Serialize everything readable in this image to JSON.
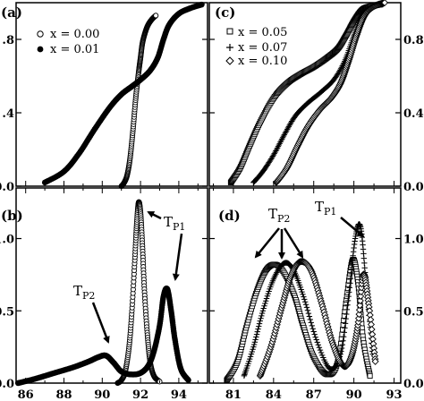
{
  "chart_data": [
    {
      "panel": "(a)",
      "type": "scatter",
      "xlim": [
        85.5,
        95.5
      ],
      "ylim": [
        0,
        1.0
      ],
      "y_ticks": [
        {
          "value": 0.0,
          "label": "0.0"
        },
        {
          "value": 0.4,
          "label": ".4"
        },
        {
          "value": 0.8,
          "label": ".8"
        }
      ],
      "legend": "top-left",
      "series": [
        {
          "name": "x = 0.00",
          "marker": "open-circle",
          "x": [
            91.0,
            91.15,
            91.3,
            91.45,
            91.6,
            91.75,
            91.9,
            92.0,
            92.1,
            92.25,
            92.4,
            92.6,
            92.8
          ],
          "y": [
            0.0,
            0.02,
            0.06,
            0.15,
            0.3,
            0.48,
            0.62,
            0.7,
            0.78,
            0.84,
            0.88,
            0.91,
            0.93
          ]
        },
        {
          "name": "x = 0.01",
          "marker": "filled-circle",
          "x": [
            87.0,
            88.0,
            88.8,
            89.6,
            90.4,
            91.0,
            91.5,
            92.0,
            92.5,
            92.9,
            93.2,
            93.5,
            94.0,
            94.6,
            95.2
          ],
          "y": [
            0.02,
            0.08,
            0.18,
            0.31,
            0.43,
            0.5,
            0.54,
            0.58,
            0.63,
            0.7,
            0.8,
            0.88,
            0.94,
            0.97,
            0.99
          ]
        }
      ]
    },
    {
      "panel": "(b)",
      "type": "scatter",
      "xlim": [
        85.5,
        95.5
      ],
      "ylim": [
        0,
        1.35
      ],
      "x_ticks": [
        {
          "value": 86,
          "label": "86"
        },
        {
          "value": 88,
          "label": "88"
        },
        {
          "value": 90,
          "label": "90"
        },
        {
          "value": 92,
          "label": "92"
        },
        {
          "value": 94,
          "label": "94"
        }
      ],
      "y_ticks": [
        {
          "value": 0.0,
          "label": "0.0"
        },
        {
          "value": 0.5,
          "label": "0.5"
        },
        {
          "value": 1.0,
          "label": "1.0"
        }
      ],
      "annotations": [
        {
          "text": "T",
          "sub": "P1"
        },
        {
          "text": "T",
          "sub": "P2"
        }
      ],
      "series": [
        {
          "name": "x = 0.00",
          "marker": "open-circle",
          "x": [
            90.8,
            91.0,
            91.2,
            91.4,
            91.55,
            91.7,
            91.8,
            91.9,
            92.0,
            92.1,
            92.2,
            92.35,
            92.5,
            92.7,
            93.0
          ],
          "y": [
            0.0,
            0.02,
            0.08,
            0.25,
            0.5,
            0.85,
            1.1,
            1.25,
            1.18,
            0.95,
            0.65,
            0.35,
            0.15,
            0.05,
            0.01
          ]
        },
        {
          "name": "x = 0.01",
          "marker": "filled-circle",
          "x": [
            85.6,
            86.5,
            87.5,
            88.5,
            89.3,
            89.8,
            90.2,
            90.6,
            91.0,
            91.5,
            92.0,
            92.4,
            92.7,
            93.0,
            93.2,
            93.4,
            93.6,
            93.8,
            94.1,
            94.5
          ],
          "y": [
            0.0,
            0.03,
            0.07,
            0.11,
            0.15,
            0.18,
            0.19,
            0.14,
            0.08,
            0.06,
            0.07,
            0.12,
            0.22,
            0.4,
            0.6,
            0.65,
            0.5,
            0.3,
            0.1,
            0.02
          ]
        }
      ]
    },
    {
      "panel": "(c)",
      "type": "scatter",
      "xlim": [
        79.2,
        93.5
      ],
      "ylim": [
        0,
        1.0
      ],
      "y_ticks": [
        {
          "value": 0.0,
          "label": "0.0"
        },
        {
          "value": 0.4,
          "label": "0.4"
        },
        {
          "value": 0.8,
          "label": "0.8"
        }
      ],
      "legend": "top-left",
      "series": [
        {
          "name": "x = 0.05",
          "marker": "open-square",
          "x": [
            80.8,
            81.5,
            82.2,
            83.0,
            84.0,
            85.0,
            86.0,
            87.0,
            88.0,
            88.8,
            89.4,
            90.0,
            90.6,
            91.2,
            92.0
          ],
          "y": [
            0.02,
            0.1,
            0.22,
            0.35,
            0.48,
            0.56,
            0.61,
            0.65,
            0.7,
            0.75,
            0.82,
            0.9,
            0.96,
            0.98,
            0.99
          ]
        },
        {
          "name": "x = 0.07",
          "marker": "plus",
          "x": [
            82.5,
            83.2,
            84.0,
            84.8,
            85.6,
            86.5,
            87.5,
            88.5,
            89.3,
            90.0,
            90.6,
            91.2,
            92.0
          ],
          "y": [
            0.02,
            0.08,
            0.17,
            0.28,
            0.38,
            0.45,
            0.51,
            0.58,
            0.68,
            0.82,
            0.93,
            0.97,
            0.99
          ]
        },
        {
          "name": "x = 0.10",
          "marker": "open-diamond",
          "x": [
            84.2,
            85.0,
            85.8,
            86.6,
            87.5,
            88.3,
            89.0,
            89.6,
            90.2,
            90.8,
            91.5,
            92.3
          ],
          "y": [
            0.02,
            0.1,
            0.22,
            0.33,
            0.42,
            0.48,
            0.56,
            0.68,
            0.82,
            0.93,
            0.98,
            1.0
          ]
        }
      ]
    },
    {
      "panel": "(d)",
      "type": "scatter",
      "xlim": [
        79.2,
        93.5
      ],
      "ylim": [
        0,
        1.35
      ],
      "x_ticks": [
        {
          "value": 81,
          "label": "81"
        },
        {
          "value": 84,
          "label": "84"
        },
        {
          "value": 87,
          "label": "87"
        },
        {
          "value": 90,
          "label": "90"
        },
        {
          "value": 93,
          "label": "93"
        }
      ],
      "y_ticks": [
        {
          "value": 0.0,
          "label": "0.0"
        },
        {
          "value": 0.5,
          "label": "0.5"
        },
        {
          "value": 1.0,
          "label": "1.0"
        }
      ],
      "annotations": [
        {
          "text": "T",
          "sub": "P2"
        },
        {
          "text": "T",
          "sub": "P1"
        }
      ],
      "series": [
        {
          "name": "x = 0.05",
          "marker": "open-square",
          "x": [
            80.5,
            81.3,
            82.0,
            82.8,
            83.6,
            84.5,
            85.5,
            86.2,
            87.0,
            88.0,
            88.8,
            89.4,
            89.9,
            90.3,
            90.7,
            91.2
          ],
          "y": [
            0.02,
            0.15,
            0.4,
            0.65,
            0.8,
            0.8,
            0.62,
            0.4,
            0.18,
            0.06,
            0.15,
            0.55,
            0.85,
            0.7,
            0.3,
            0.05
          ]
        },
        {
          "name": "x = 0.07",
          "marker": "plus",
          "x": [
            81.8,
            82.5,
            83.2,
            84.0,
            84.8,
            85.5,
            86.3,
            87.2,
            88.2,
            89.0,
            89.6,
            90.1,
            90.5,
            90.9,
            91.4
          ],
          "y": [
            0.05,
            0.25,
            0.5,
            0.72,
            0.83,
            0.78,
            0.58,
            0.3,
            0.1,
            0.2,
            0.6,
            1.0,
            1.08,
            0.7,
            0.2
          ]
        },
        {
          "name": "x = 0.10",
          "marker": "open-diamond",
          "x": [
            83.0,
            83.8,
            84.6,
            85.3,
            86.0,
            86.8,
            87.6,
            88.4,
            89.2,
            89.8,
            90.3,
            90.7,
            91.1,
            91.6
          ],
          "y": [
            0.05,
            0.25,
            0.52,
            0.74,
            0.84,
            0.78,
            0.55,
            0.28,
            0.12,
            0.18,
            0.4,
            0.75,
            0.55,
            0.15
          ]
        }
      ]
    }
  ]
}
